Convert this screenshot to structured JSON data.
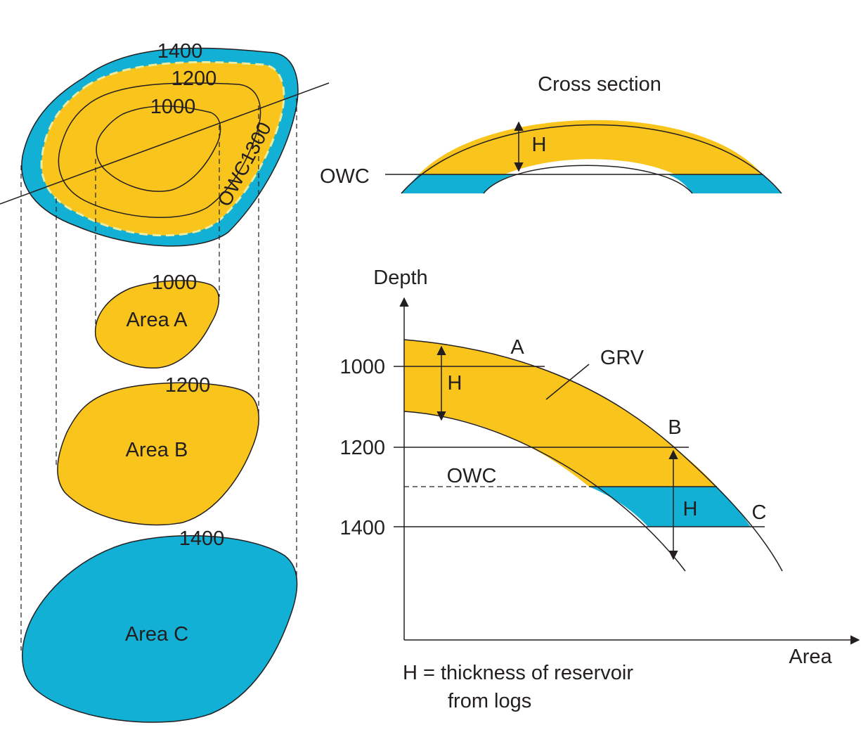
{
  "colors": {
    "oil": "#f9c41c",
    "water": "#13b0d5",
    "ink": "#231f20"
  },
  "map": {
    "contour_labels": [
      "1400",
      "1200",
      "1000"
    ],
    "owc_label": "OWC1300"
  },
  "areas": [
    {
      "label": "Area A",
      "contour": "1000"
    },
    {
      "label": "Area B",
      "contour": "1200"
    },
    {
      "label": "Area C",
      "contour": "1400"
    }
  ],
  "cross_section": {
    "title": "Cross section",
    "owc_label": "OWC",
    "thickness_label": "H"
  },
  "chart": {
    "ylabel": "Depth",
    "xlabel": "Area",
    "yticks": [
      "1000",
      "1200",
      "1400"
    ],
    "point_labels": [
      "A",
      "B",
      "C"
    ],
    "grv_label": "GRV",
    "owc_label": "OWC",
    "thickness_label": "H"
  },
  "note": {
    "line1": "H = thickness of reservoir",
    "line2": "from logs"
  }
}
